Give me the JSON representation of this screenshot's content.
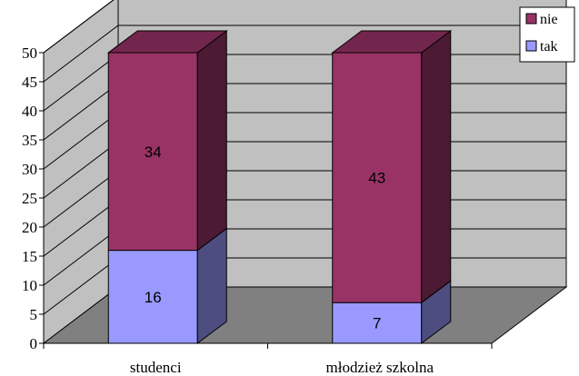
{
  "chart_data": {
    "type": "bar",
    "stacked": true,
    "three_d": true,
    "categories": [
      "studenci",
      "młodzież szkolna"
    ],
    "series": [
      {
        "name": "tak",
        "values": [
          16,
          7
        ],
        "color": "#9999ff"
      },
      {
        "name": "nie",
        "values": [
          34,
          43
        ],
        "color": "#993366"
      }
    ],
    "ylim": [
      0,
      50
    ],
    "yticks": [
      0,
      5,
      10,
      15,
      20,
      25,
      30,
      35,
      40,
      45,
      50
    ],
    "grid": true,
    "legend_position": "top-right",
    "wall_color": "#c0c0c0",
    "floor_color": "#808080"
  }
}
